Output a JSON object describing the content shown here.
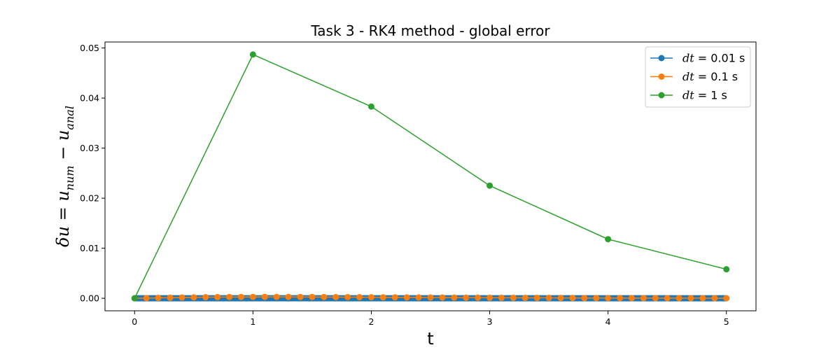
{
  "chart_data": {
    "type": "line",
    "title": "Task 3 - RK4 method - global error",
    "xlabel": "t",
    "ylabel": "δu = u_num − u_anal",
    "ylabel_parts": {
      "delta": "δu",
      "eq": "= u",
      "num_sub": "num",
      "minus": "− u",
      "anal_sub": "anal"
    },
    "xlim": [
      -0.25,
      5.25
    ],
    "ylim": [
      -0.0025,
      0.0512
    ],
    "xticks": [
      0,
      1,
      2,
      3,
      4,
      5
    ],
    "xtick_labels": [
      "0",
      "1",
      "2",
      "3",
      "4",
      "5"
    ],
    "yticks": [
      0.0,
      0.01,
      0.02,
      0.03,
      0.04,
      0.05
    ],
    "ytick_labels": [
      "0.00",
      "0.01",
      "0.02",
      "0.03",
      "0.04",
      "0.05"
    ],
    "grid": false,
    "legend_position": "top-right",
    "series": [
      {
        "name": "dt = 0.01 s",
        "legend_label": {
          "var": "dt",
          "rest": " = 0.01 s"
        },
        "color": "#1f77b4",
        "x_start": 0,
        "x_step": 0.01,
        "count": 501,
        "values_note_constant": 2e-08
      },
      {
        "name": "dt = 0.1 s",
        "legend_label": {
          "var": "dt",
          "rest": " = 0.1 s"
        },
        "color": "#ff7f0e",
        "x_start": 0,
        "x_step": 0.1,
        "values": [
          0.0,
          4e-05,
          8e-05,
          0.00012,
          0.00016,
          0.00019,
          0.00022,
          0.00024,
          0.00026,
          0.00027,
          0.00028,
          0.00028,
          0.00028,
          0.00028,
          0.00027,
          0.00026,
          0.00025,
          0.00024,
          0.00023,
          0.00022,
          0.00021,
          0.0002,
          0.00019,
          0.00018,
          0.00017,
          0.00016,
          0.00015,
          0.00014,
          0.00013,
          0.00012,
          0.00011,
          0.0001,
          0.0001,
          9e-05,
          8e-05,
          8e-05,
          7e-05,
          7e-05,
          6e-05,
          6e-05,
          5e-05,
          5e-05,
          4e-05,
          4e-05,
          4e-05,
          3e-05,
          3e-05,
          3e-05,
          3e-05,
          2e-05,
          2e-05
        ]
      },
      {
        "name": "dt = 1 s",
        "legend_label": {
          "var": "dt",
          "rest": " = 1 s"
        },
        "color": "#2ca02c",
        "x": [
          0,
          1,
          2,
          3,
          4,
          5
        ],
        "values": [
          0.0,
          0.0487,
          0.0383,
          0.0225,
          0.0118,
          0.0058
        ]
      }
    ]
  }
}
